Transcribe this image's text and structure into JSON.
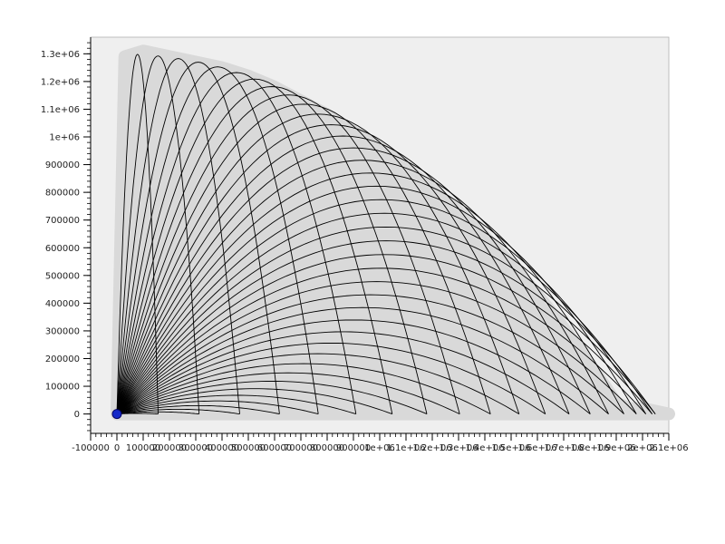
{
  "colors": {
    "background": "#ffffff",
    "plot_background": "#efefef",
    "envelope_fill": "#d9d9d9",
    "trajectory_line": "#000000",
    "axis": "#000000",
    "marker_fill": "#1428c8",
    "marker_stroke": "#000060"
  },
  "chart_data": {
    "type": "line",
    "title": "",
    "xlabel": "",
    "ylabel": "",
    "xlim": [
      -100000,
      2100000
    ],
    "ylim": [
      -70000,
      1360000
    ],
    "grid": false,
    "legend": null,
    "x_ticks": [
      {
        "value": -100000,
        "label": "-100000"
      },
      {
        "value": 0,
        "label": "0"
      },
      {
        "value": 100000,
        "label": "100000"
      },
      {
        "value": 200000,
        "label": "200000"
      },
      {
        "value": 300000,
        "label": "300000"
      },
      {
        "value": 400000,
        "label": "400000"
      },
      {
        "value": 500000,
        "label": "500000"
      },
      {
        "value": 600000,
        "label": "600000"
      },
      {
        "value": 700000,
        "label": "700000"
      },
      {
        "value": 800000,
        "label": "800000"
      },
      {
        "value": 900000,
        "label": "900000"
      },
      {
        "value": 1000000,
        "label": "1e+06"
      },
      {
        "value": 1100000,
        "label": "1.1e+06"
      },
      {
        "value": 1200000,
        "label": "1.2e+06"
      },
      {
        "value": 1300000,
        "label": "1.3e+06"
      },
      {
        "value": 1400000,
        "label": "1.4e+06"
      },
      {
        "value": 1500000,
        "label": "1.5e+06"
      },
      {
        "value": 1600000,
        "label": "1.6e+06"
      },
      {
        "value": 1700000,
        "label": "1.7e+06"
      },
      {
        "value": 1800000,
        "label": "1.8e+06"
      },
      {
        "value": 1900000,
        "label": "1.9e+06"
      },
      {
        "value": 2000000,
        "label": "2e+06"
      },
      {
        "value": 2100000,
        "label": "2.1e+06"
      }
    ],
    "y_ticks": [
      {
        "value": 0,
        "label": "0"
      },
      {
        "value": 100000,
        "label": "100000"
      },
      {
        "value": 200000,
        "label": "200000"
      },
      {
        "value": 300000,
        "label": "300000"
      },
      {
        "value": 400000,
        "label": "400000"
      },
      {
        "value": 500000,
        "label": "500000"
      },
      {
        "value": 600000,
        "label": "600000"
      },
      {
        "value": 700000,
        "label": "700000"
      },
      {
        "value": 800000,
        "label": "800000"
      },
      {
        "value": 900000,
        "label": "900000"
      },
      {
        "value": 1000000,
        "label": "1e+06"
      },
      {
        "value": 1100000,
        "label": "1.1e+06"
      },
      {
        "value": 1200000,
        "label": "1.2e+06"
      },
      {
        "value": 1300000,
        "label": "1.3e+06"
      }
    ],
    "envelope": [
      [
        0,
        0
      ],
      [
        30000,
        1290000
      ],
      [
        100000,
        1310000
      ],
      [
        200000,
        1290000
      ],
      [
        300000,
        1270000
      ],
      [
        400000,
        1250000
      ],
      [
        500000,
        1220000
      ],
      [
        600000,
        1180000
      ],
      [
        700000,
        1130000
      ],
      [
        800000,
        1080000
      ],
      [
        900000,
        1020000
      ],
      [
        1000000,
        960000
      ],
      [
        1100000,
        890000
      ],
      [
        1200000,
        810000
      ],
      [
        1300000,
        730000
      ],
      [
        1400000,
        640000
      ],
      [
        1500000,
        540000
      ],
      [
        1600000,
        430000
      ],
      [
        1700000,
        310000
      ],
      [
        1800000,
        180000
      ],
      [
        1850000,
        110000
      ],
      [
        1900000,
        40000
      ],
      [
        1950000,
        20000
      ],
      [
        2000000,
        20000
      ],
      [
        2100000,
        0
      ]
    ],
    "series_note_count": 40,
    "start_marker": {
      "x": 0,
      "y": 0
    }
  }
}
